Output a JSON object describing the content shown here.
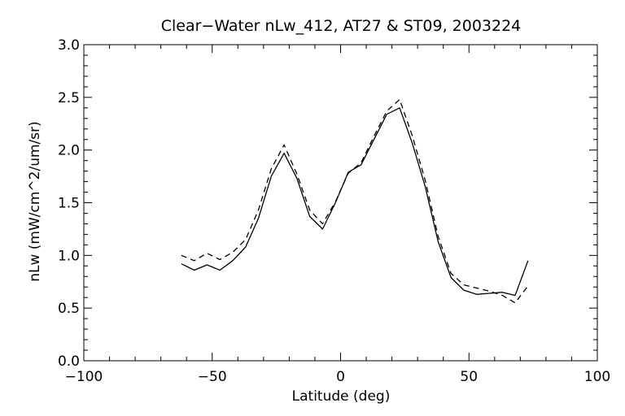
{
  "chart_data": {
    "type": "line",
    "title": "Clear−Water nLw_412, AT27 & ST09, 2003224",
    "xlabel": "Latitude (deg)",
    "ylabel": "nLw (mW/cm^2/um/sr)",
    "xlim": [
      -100,
      100
    ],
    "ylim": [
      0.0,
      3.0
    ],
    "x_ticks": [
      "−100",
      "−50",
      "0",
      "50",
      "100"
    ],
    "y_ticks": [
      "0.0",
      "0.5",
      "1.0",
      "1.5",
      "2.0",
      "2.5",
      "3.0"
    ],
    "grid": false,
    "series": [
      {
        "style": "solid",
        "x": [
          -62,
          -57,
          -52,
          -47,
          -42,
          -37,
          -32,
          -27,
          -22,
          -17,
          -12,
          -7,
          -2,
          3,
          8,
          13,
          18,
          23,
          28,
          33,
          38,
          43,
          48,
          53,
          58,
          63,
          68,
          73
        ],
        "y": [
          0.92,
          0.86,
          0.91,
          0.86,
          0.95,
          1.08,
          1.35,
          1.75,
          1.97,
          1.73,
          1.37,
          1.25,
          1.5,
          1.79,
          1.86,
          2.1,
          2.34,
          2.4,
          2.06,
          1.65,
          1.13,
          0.79,
          0.67,
          0.63,
          0.64,
          0.65,
          0.62,
          0.95
        ]
      },
      {
        "style": "dashed",
        "x": [
          -62,
          -57,
          -52,
          -47,
          -42,
          -37,
          -32,
          -27,
          -22,
          -17,
          -12,
          -7,
          -2,
          3,
          8,
          13,
          18,
          23,
          28,
          33,
          38,
          43,
          48,
          53,
          58,
          63,
          68,
          73
        ],
        "y": [
          1.0,
          0.95,
          1.02,
          0.96,
          1.03,
          1.15,
          1.43,
          1.82,
          2.05,
          1.77,
          1.43,
          1.3,
          1.51,
          1.78,
          1.88,
          2.13,
          2.37,
          2.48,
          2.13,
          1.71,
          1.18,
          0.83,
          0.72,
          0.69,
          0.66,
          0.62,
          0.55,
          0.71
        ]
      }
    ]
  }
}
